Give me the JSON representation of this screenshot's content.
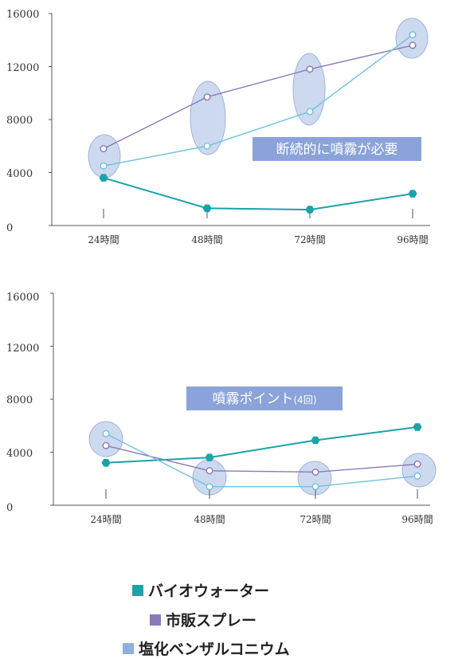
{
  "chart_data": [
    {
      "type": "line",
      "categories": [
        "24時間",
        "48時間",
        "72時間",
        "96時間"
      ],
      "yticks": [
        "16000",
        "12000",
        "8000",
        "4000",
        "0"
      ],
      "ylim": [
        0,
        16000
      ],
      "annotation": "断続的に噴霧が必要",
      "series": [
        {
          "name": "バイオウォーター",
          "values": [
            3600,
            1300,
            1200,
            2400
          ]
        },
        {
          "name": "市販スプレー",
          "values": [
            5800,
            9700,
            11800,
            13600
          ]
        },
        {
          "name": "塩化ベンザルコニウム",
          "values": [
            4500,
            6000,
            8600,
            14400
          ]
        }
      ]
    },
    {
      "type": "line",
      "categories": [
        "24時間",
        "48時間",
        "72時間",
        "96時間"
      ],
      "yticks": [
        "16000",
        "12000",
        "8000",
        "4000",
        "0"
      ],
      "ylim": [
        0,
        16000
      ],
      "annotation": "噴霧ポイント",
      "annotation_small": "(4回)",
      "series": [
        {
          "name": "バイオウォーター",
          "values": [
            3200,
            3600,
            4900,
            5900
          ]
        },
        {
          "name": "市販スプレー",
          "values": [
            4500,
            2600,
            2500,
            3100
          ]
        },
        {
          "name": "塩化ベンザルコニウム",
          "values": [
            5400,
            1400,
            1400,
            2200
          ]
        }
      ]
    }
  ],
  "colors": {
    "bio": "#1aa3a8",
    "commercial": "#8a7bb8",
    "benzal": "#6fc0e0",
    "highlight_fill": "#c5d3ec",
    "highlight_stroke": "#8fa8d6",
    "annotation_bg": "#8ba3d8"
  },
  "legend": [
    {
      "label": "バイオウォーター",
      "color": "#1aa3a8"
    },
    {
      "label": "市販スプレー",
      "color": "#8a7bb8"
    },
    {
      "label": "塩化ベンザルコニウム",
      "color": "#8fb0e0"
    }
  ]
}
